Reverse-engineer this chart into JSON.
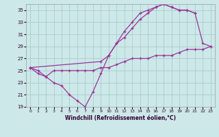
{
  "xlabel": "Windchill (Refroidissement éolien,°C)",
  "bg_color": "#cce8e8",
  "grid_color": "#aacccc",
  "line_color": "#993399",
  "xlim": [
    -0.5,
    23.5
  ],
  "ylim": [
    19,
    36
  ],
  "yticks": [
    19,
    21,
    23,
    25,
    27,
    29,
    31,
    33,
    35
  ],
  "xticks": [
    0,
    1,
    2,
    3,
    4,
    5,
    6,
    7,
    8,
    9,
    10,
    11,
    12,
    13,
    14,
    15,
    16,
    17,
    18,
    19,
    20,
    21,
    22,
    23
  ],
  "line1_x": [
    0,
    1,
    2,
    3,
    4,
    5,
    6,
    7,
    8,
    9,
    10,
    11,
    12,
    13,
    14,
    15,
    16,
    17,
    18,
    19,
    20,
    21
  ],
  "line1_y": [
    25.5,
    25.0,
    24.0,
    23.0,
    22.5,
    21.0,
    20.0,
    19.0,
    21.5,
    24.5,
    27.5,
    29.5,
    30.5,
    32.0,
    33.5,
    34.5,
    35.5,
    36.0,
    35.5,
    35.0,
    35.0,
    34.5
  ],
  "line2_x": [
    0,
    9,
    10,
    11,
    12,
    13,
    14,
    15,
    16,
    17,
    18,
    19,
    20,
    21,
    22,
    23
  ],
  "line2_y": [
    25.5,
    26.5,
    27.5,
    29.5,
    31.5,
    33.0,
    34.5,
    35.0,
    35.5,
    36.0,
    35.5,
    35.0,
    35.0,
    34.5,
    29.5,
    29.0
  ],
  "line3_x": [
    0,
    1,
    2,
    3,
    4,
    5,
    6,
    7,
    8,
    9,
    10,
    11,
    12,
    13,
    14,
    15,
    16,
    17,
    18,
    19,
    20,
    21,
    22,
    23
  ],
  "line3_y": [
    25.5,
    24.5,
    24.0,
    25.0,
    25.0,
    25.0,
    25.0,
    25.0,
    25.0,
    25.5,
    25.5,
    26.0,
    26.5,
    27.0,
    27.0,
    27.0,
    27.5,
    27.5,
    27.5,
    28.0,
    28.5,
    28.5,
    28.5,
    29.0
  ]
}
